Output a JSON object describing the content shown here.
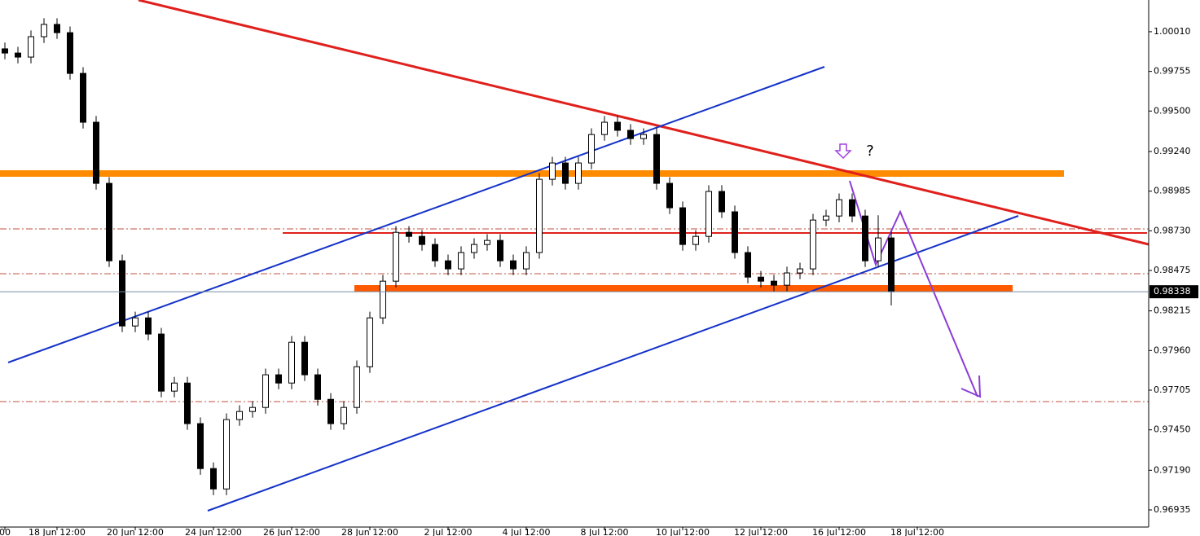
{
  "chart_data": {
    "type": "candlestick",
    "categories": [
      "00",
      null,
      null,
      null,
      "18 Jun 12:00",
      null,
      null,
      null,
      null,
      null,
      "20 Jun 12:00",
      null,
      null,
      null,
      null,
      null,
      "24 Jun 12:00",
      null,
      null,
      null,
      null,
      null,
      "26 Jun 12:00",
      null,
      null,
      null,
      null,
      null,
      "28 Jun 12:00",
      null,
      null,
      null,
      null,
      null,
      "2 Jul 12:00",
      null,
      null,
      null,
      null,
      null,
      "4 Jul 12:00",
      null,
      null,
      null,
      null,
      null,
      "8 Jul 12:00",
      null,
      null,
      null,
      null,
      null,
      "10 Jul 12:00",
      null,
      null,
      null,
      null,
      null,
      "12 Jul 12:00",
      null,
      null,
      null,
      null,
      null,
      "16 Jul 12:00",
      null,
      null,
      null,
      null,
      null,
      "18 Jul 12:00"
    ],
    "open": [
      0.999,
      0.99873,
      0.99847,
      0.99978,
      1.00057,
      1.00004,
      0.99742,
      0.99428,
      0.99035,
      0.98537,
      0.98118,
      0.9817,
      0.98066,
      0.97699,
      0.97751,
      0.9749,
      0.97201,
      0.9707,
      0.97516,
      0.97568,
      0.97594,
      0.97804,
      0.97751,
      0.98013,
      0.97804,
      0.97646,
      0.9749,
      0.97594,
      0.97856,
      0.9817,
      0.98406,
      0.9872,
      0.98694,
      0.98642,
      0.98537,
      0.98485,
      0.9859,
      0.98642,
      0.98668,
      0.98537,
      0.98485,
      0.9859,
      0.99061,
      0.99166,
      0.99035,
      0.99166,
      0.99349,
      0.99428,
      0.99376,
      0.99323,
      0.99349,
      0.99035,
      0.98878,
      0.98642,
      0.98694,
      0.98983,
      0.98852,
      0.9859,
      0.98432,
      0.98406,
      0.9838,
      0.98459,
      0.98485,
      0.98799,
      0.98825,
      0.9893,
      0.98825,
      0.98537,
      0.98684,
      null,
      null
    ],
    "high": [
      0.9994,
      0.99913,
      1.00018,
      1.00097,
      1.00097,
      1.00044,
      0.99782,
      0.99468,
      0.99075,
      0.98577,
      0.9821,
      0.9821,
      0.98106,
      0.97791,
      0.97791,
      0.9753,
      0.97241,
      0.97556,
      0.97608,
      0.97634,
      0.97844,
      0.97844,
      0.98053,
      0.98053,
      0.97844,
      0.97686,
      0.97634,
      0.97896,
      0.9821,
      0.98446,
      0.9876,
      0.9876,
      0.98734,
      0.98682,
      0.98577,
      0.9863,
      0.98682,
      0.98708,
      0.98708,
      0.98577,
      0.9863,
      0.99101,
      0.99206,
      0.99206,
      0.99206,
      0.99389,
      0.99468,
      0.99468,
      0.99416,
      0.99389,
      0.99389,
      0.99075,
      0.98918,
      0.98734,
      0.99023,
      0.99023,
      0.98892,
      0.9863,
      0.98472,
      0.98446,
      0.98499,
      0.98525,
      0.98839,
      0.98865,
      0.9897,
      0.9897,
      0.98865,
      0.9883,
      0.98724,
      null,
      null
    ],
    "low": [
      0.99833,
      0.99807,
      0.99807,
      0.99938,
      0.99964,
      0.99702,
      0.99388,
      0.98995,
      0.98497,
      0.98078,
      0.98078,
      0.98026,
      0.97659,
      0.97659,
      0.9745,
      0.97161,
      0.9703,
      0.9703,
      0.97476,
      0.97528,
      0.97554,
      0.97711,
      0.97711,
      0.97764,
      0.97606,
      0.9745,
      0.9745,
      0.97554,
      0.97816,
      0.9813,
      0.98366,
      0.98654,
      0.98602,
      0.98497,
      0.98445,
      0.98445,
      0.9855,
      0.98602,
      0.98497,
      0.98445,
      0.98445,
      0.9855,
      0.99021,
      0.98995,
      0.98995,
      0.99126,
      0.99309,
      0.99336,
      0.99283,
      0.99283,
      0.98995,
      0.98838,
      0.98602,
      0.98602,
      0.98654,
      0.98812,
      0.9855,
      0.98392,
      0.98366,
      0.9834,
      0.9834,
      0.98419,
      0.98445,
      0.98759,
      0.98785,
      0.98785,
      0.98497,
      0.98497,
      0.9825,
      null,
      null
    ],
    "close": [
      0.99873,
      0.99847,
      0.99978,
      1.00057,
      1.00004,
      0.99742,
      0.99428,
      0.99035,
      0.98537,
      0.98118,
      0.9817,
      0.98066,
      0.97699,
      0.97751,
      0.9749,
      0.97201,
      0.9707,
      0.97516,
      0.97568,
      0.97594,
      0.97804,
      0.97751,
      0.98013,
      0.97804,
      0.97646,
      0.9749,
      0.97594,
      0.97856,
      0.9817,
      0.98406,
      0.9872,
      0.98694,
      0.98642,
      0.98537,
      0.98485,
      0.9859,
      0.98642,
      0.98668,
      0.98537,
      0.98485,
      0.9859,
      0.99061,
      0.99166,
      0.99035,
      0.99166,
      0.99349,
      0.99428,
      0.99376,
      0.99323,
      0.99349,
      0.99035,
      0.98878,
      0.98642,
      0.98694,
      0.98983,
      0.98852,
      0.9859,
      0.98432,
      0.98406,
      0.9838,
      0.98459,
      0.98485,
      0.98799,
      0.98825,
      0.9893,
      0.98825,
      0.98537,
      0.98684,
      0.98338,
      null,
      null
    ],
    "ylim": [
      0.96825,
      1.00214
    ],
    "yticks": [
      {
        "value": 1.0001,
        "label": "1.00010"
      },
      0.99755,
      {
        "value": 0.995,
        "label": "0.99500"
      },
      {
        "value": 0.9924,
        "label": "0.99240"
      },
      0.98985,
      {
        "value": 0.9873,
        "label": "0.98730"
      },
      0.98475,
      0.98215,
      {
        "value": 0.9796,
        "label": "0.97960"
      },
      0.97705,
      {
        "value": 0.9745,
        "label": "0.97450"
      },
      {
        "value": 0.9719,
        "label": "0.97190"
      },
      0.96935
    ],
    "current_price": 0.98338,
    "annotations": [
      "?"
    ]
  }
}
